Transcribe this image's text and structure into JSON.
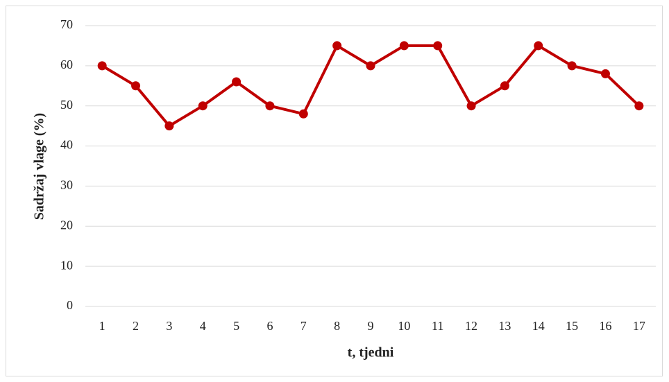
{
  "chart_data": {
    "type": "line",
    "x_label": "t, tjedni",
    "y_label": "Sadržaj vlage (%)",
    "categories": [
      "1",
      "2",
      "3",
      "4",
      "5",
      "6",
      "7",
      "8",
      "9",
      "10",
      "11",
      "12",
      "13",
      "14",
      "15",
      "16",
      "17"
    ],
    "series": [
      {
        "color": "#c00000",
        "values": [
          60,
          55,
          45,
          50,
          56,
          50,
          48,
          65,
          60,
          65,
          65,
          50,
          55,
          65,
          60,
          58,
          50
        ]
      }
    ],
    "ylim": [
      0,
      70
    ],
    "yticks": [
      0,
      10,
      20,
      30,
      40,
      50,
      60,
      70
    ],
    "grid": true
  }
}
